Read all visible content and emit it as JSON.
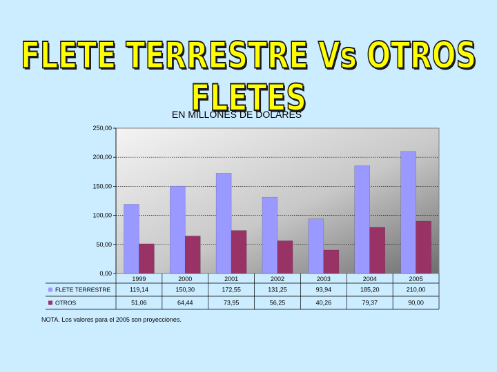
{
  "slide": {
    "title": "FLETE TERRESTRE Vs OTROS FLETES"
  },
  "chart_data": {
    "type": "bar",
    "title": "EN MILLONES DE DOLARES",
    "xlabel": "",
    "ylabel": "",
    "ylim": [
      0,
      250
    ],
    "yticks": [
      "0,00",
      "50,00",
      "100,00",
      "150,00",
      "200,00",
      "250,00"
    ],
    "ytick_values": [
      0,
      50,
      100,
      150,
      200,
      250
    ],
    "categories": [
      "1999",
      "2000",
      "2001",
      "2002",
      "2003",
      "2004",
      "2005"
    ],
    "series": [
      {
        "name": "FLETE TERRESTRE",
        "color": "#9999ff",
        "values": [
          119.14,
          150.3,
          172.55,
          131.25,
          93.94,
          185.2,
          210.0
        ],
        "labels": [
          "119,14",
          "150,30",
          "172,55",
          "131,25",
          "93,94",
          "185,20",
          "210,00"
        ]
      },
      {
        "name": "OTROS",
        "color": "#993366",
        "values": [
          51.06,
          64.44,
          73.95,
          56.25,
          40.26,
          79.37,
          90.0
        ],
        "labels": [
          "51,06",
          "64,44",
          "73,95",
          "56,25",
          "40,26",
          "79,37",
          "90,00"
        ]
      }
    ],
    "grid": true,
    "legend": "data-table",
    "note": "NOTA. Los valores para el 2005 son proyecciones."
  }
}
